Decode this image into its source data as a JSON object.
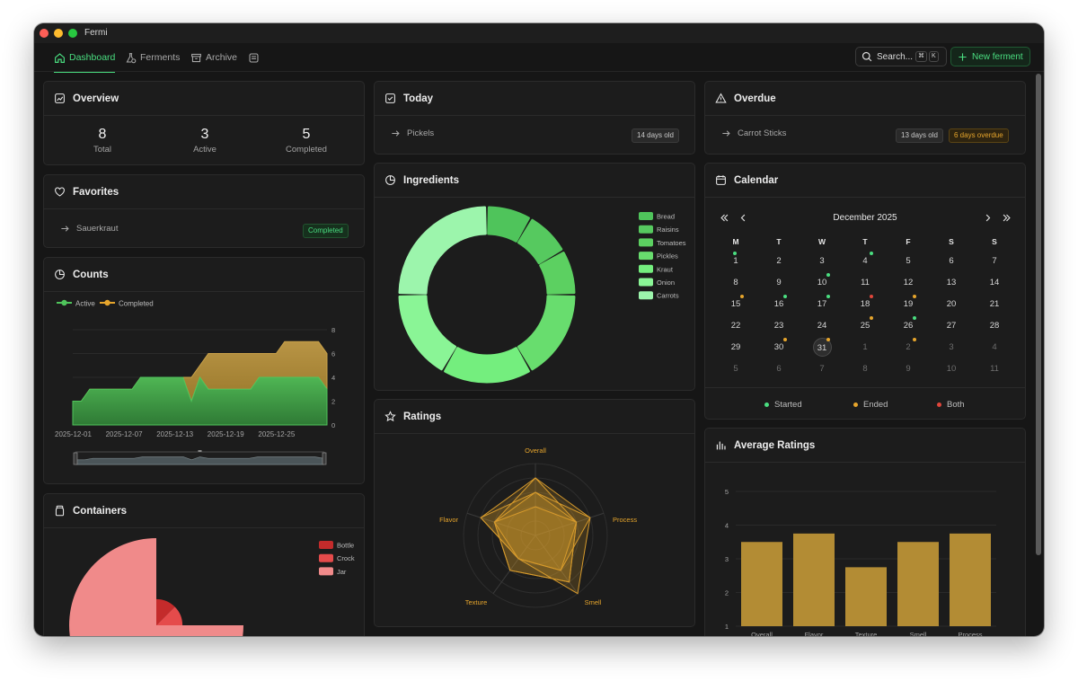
{
  "app": {
    "title": "Fermi"
  },
  "nav": {
    "tabs": [
      {
        "label": "Dashboard",
        "icon": "home-icon",
        "active": true
      },
      {
        "label": "Ferments",
        "icon": "flask-icon",
        "active": false
      },
      {
        "label": "Archive",
        "icon": "archive-icon",
        "active": false
      }
    ],
    "extra_icon": "notes-icon",
    "search": {
      "label": "Search...",
      "kbd1": "⌘",
      "kbd2": "K"
    },
    "new_button": "New ferment"
  },
  "overview": {
    "title": "Overview",
    "stats": [
      {
        "value": "8",
        "label": "Total"
      },
      {
        "value": "3",
        "label": "Active"
      },
      {
        "value": "5",
        "label": "Completed"
      }
    ]
  },
  "today": {
    "title": "Today",
    "item": "Pickels",
    "badge": "14 days old"
  },
  "overdue": {
    "title": "Overdue",
    "item": "Carrot Sticks",
    "badge_age": "13 days old",
    "badge_overdue": "6 days overdue"
  },
  "favorites": {
    "title": "Favorites",
    "item": "Sauerkraut",
    "badge": "Completed"
  },
  "counts": {
    "title": "Counts"
  },
  "ingredients": {
    "title": "Ingredients"
  },
  "calendar": {
    "title": "Calendar",
    "month": "December 2025",
    "weekdays": [
      "M",
      "T",
      "W",
      "T",
      "F",
      "S",
      "S"
    ],
    "weeks": [
      [
        "1",
        "2",
        "3",
        "4",
        "5",
        "6",
        "7"
      ],
      [
        "8",
        "9",
        "10",
        "11",
        "12",
        "13",
        "14"
      ],
      [
        "15",
        "16",
        "17",
        "18",
        "19",
        "20",
        "21"
      ],
      [
        "22",
        "23",
        "24",
        "25",
        "26",
        "27",
        "28"
      ],
      [
        "29",
        "30",
        "31",
        "1",
        "2",
        "3",
        "4"
      ],
      [
        "5",
        "6",
        "7",
        "8",
        "9",
        "10",
        "11"
      ]
    ],
    "legend": {
      "started": "Started",
      "ended": "Ended",
      "both": "Both"
    },
    "today": "31"
  },
  "ratings": {
    "title": "Ratings"
  },
  "avg_ratings": {
    "title": "Average Ratings"
  },
  "containers": {
    "title": "Containers"
  },
  "colors": {
    "accent": "#4ade80",
    "gold": "#e6a52c",
    "red": "#e0463b",
    "bar": "#b38c34"
  },
  "chart_data": [
    {
      "type": "area",
      "title": "Counts",
      "x": [
        "2025-12-01",
        "2025-12-02",
        "2025-12-03",
        "2025-12-04",
        "2025-12-05",
        "2025-12-06",
        "2025-12-07",
        "2025-12-08",
        "2025-12-09",
        "2025-12-10",
        "2025-12-11",
        "2025-12-12",
        "2025-12-13",
        "2025-12-14",
        "2025-12-15",
        "2025-12-16",
        "2025-12-17",
        "2025-12-18",
        "2025-12-19",
        "2025-12-20",
        "2025-12-21",
        "2025-12-22",
        "2025-12-23",
        "2025-12-24",
        "2025-12-25",
        "2025-12-26",
        "2025-12-27",
        "2025-12-28",
        "2025-12-29",
        "2025-12-30",
        "2025-12-31"
      ],
      "xticks": [
        "2025-12-01",
        "2025-12-07",
        "2025-12-13",
        "2025-12-19",
        "2025-12-25"
      ],
      "series": [
        {
          "name": "Active",
          "values": [
            2,
            2,
            3,
            3,
            3,
            3,
            3,
            3,
            4,
            4,
            4,
            4,
            4,
            4,
            2,
            4,
            3,
            3,
            3,
            3,
            3,
            3,
            4,
            4,
            4,
            4,
            4,
            4,
            4,
            4,
            3
          ]
        },
        {
          "name": "Completed",
          "values": [
            0,
            0,
            0,
            0,
            0,
            0,
            0,
            0,
            0,
            0,
            0,
            0,
            0,
            0,
            2,
            1,
            3,
            3,
            3,
            3,
            3,
            3,
            2,
            2,
            2,
            3,
            3,
            3,
            3,
            3,
            3
          ]
        }
      ],
      "stacked": true,
      "ylim": [
        0,
        8
      ],
      "yticks": [
        0,
        2,
        4,
        6,
        8
      ],
      "legend": "top-left"
    },
    {
      "type": "pie",
      "title": "Ingredients",
      "donut": true,
      "categories": [
        "Bread",
        "Raisins",
        "Tomatoes",
        "Pickles",
        "Kraut",
        "Onion",
        "Carrots"
      ],
      "values": [
        1,
        1,
        1,
        2,
        2,
        2,
        3
      ],
      "colors": [
        "#4fc45b",
        "#56c95f",
        "#5cd061",
        "#68dd6e",
        "#74ee7e",
        "#8af596",
        "#9cf5ac"
      ],
      "legend": "right"
    },
    {
      "type": "radar",
      "title": "Ratings",
      "categories": [
        "Overall",
        "Process",
        "Smell",
        "Texture",
        "Flavor"
      ],
      "max": 5,
      "series": [
        {
          "values": [
            4,
            4,
            5,
            2,
            4
          ]
        },
        {
          "values": [
            3,
            3,
            4,
            3,
            3
          ]
        },
        {
          "values": [
            3,
            4,
            3,
            2,
            4
          ]
        },
        {
          "values": [
            4,
            3,
            4,
            3,
            3
          ]
        },
        {
          "values": [
            2,
            3,
            3,
            2,
            3
          ]
        }
      ]
    },
    {
      "type": "bar",
      "title": "Average Ratings",
      "categories": [
        "Overall",
        "Flavor",
        "Texture",
        "Smell",
        "Process"
      ],
      "values": [
        3.5,
        3.75,
        2.75,
        3.5,
        3.75
      ],
      "ylim": [
        1,
        5
      ],
      "yticks": [
        1,
        2,
        3,
        4,
        5
      ]
    },
    {
      "type": "pie",
      "title": "Containers",
      "categories": [
        "Bottle",
        "Crock",
        "Jar"
      ],
      "values": [
        1,
        1,
        6
      ],
      "colors": [
        "#c42b2b",
        "#e54b4b",
        "#f08a8a"
      ],
      "legend": "right"
    }
  ]
}
